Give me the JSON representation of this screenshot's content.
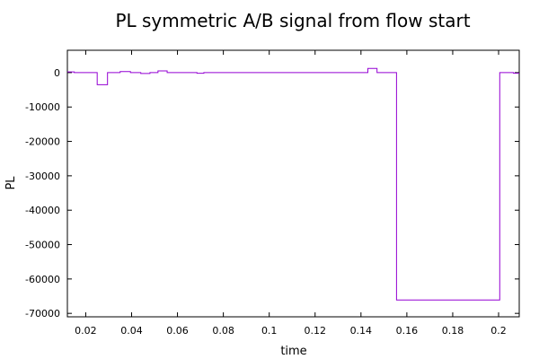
{
  "chart_data": {
    "type": "line",
    "title": "PL symmetric A/B signal from flow start",
    "xlabel": "time",
    "ylabel": "PL",
    "xlim": [
      0.012,
      0.209
    ],
    "ylim": [
      -71000,
      6500
    ],
    "x_ticks": [
      0.02,
      0.04,
      0.06,
      0.08,
      0.1,
      0.12,
      0.14,
      0.16,
      0.18,
      0.2
    ],
    "x_tick_labels": [
      "0.02",
      "0.04",
      "0.06",
      "0.08",
      "0.1",
      "0.12",
      "0.14",
      "0.16",
      "0.18",
      "0.2"
    ],
    "y_ticks": [
      0,
      -10000,
      -20000,
      -30000,
      -40000,
      -50000,
      -60000,
      -70000
    ],
    "y_tick_labels": [
      "0",
      "-10000",
      "-20000",
      "-30000",
      "-40000",
      "-50000",
      "-60000",
      "-70000"
    ],
    "grid": false,
    "legend": "none",
    "line_style": "step",
    "color": "#9400d3",
    "series": [
      {
        "x": [
          0.012,
          0.015,
          0.025,
          0.0295,
          0.035,
          0.0395,
          0.044,
          0.048,
          0.0515,
          0.0555,
          0.0595,
          0.0685,
          0.0715,
          0.143,
          0.147,
          0.1555,
          0.2005,
          0.2065,
          0.209
        ],
        "y": [
          200,
          0,
          -3500,
          0,
          300,
          0,
          -250,
          0,
          500,
          0,
          0,
          -200,
          0,
          1200,
          0,
          -66100,
          0,
          -200,
          -200
        ]
      }
    ]
  }
}
